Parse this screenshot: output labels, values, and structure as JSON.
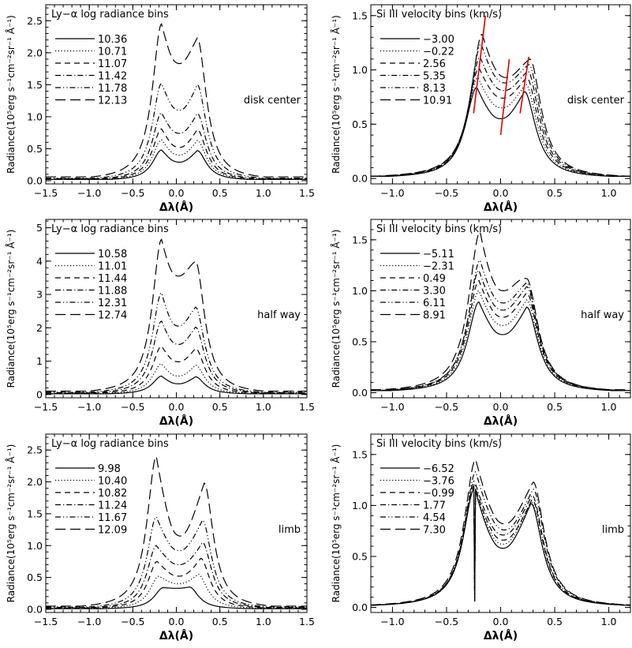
{
  "chart_data": [
    {
      "type": "line",
      "title": "Ly−α log radiance bins",
      "label": "disk center",
      "xlabel": "Δλ(Å)",
      "ylabel": "Radiance(10⁵erg s⁻¹cm⁻²sr⁻¹ Å⁻¹)",
      "xlim": [
        -1.5,
        1.5
      ],
      "ylim": [
        -0.05,
        2.75
      ],
      "xticks": [
        "-1.5",
        "-1.0",
        "-0.5",
        "0.0",
        "0.5",
        "1.0",
        "1.5"
      ],
      "yticks": [
        "0.0",
        "0.5",
        "1.0",
        "1.5",
        "2.0",
        "2.5"
      ],
      "grid": false,
      "legend_position": "top-left",
      "series": [
        {
          "name": "10.36",
          "line_style": "solid",
          "peaks": {
            "blue": [
              -0.17,
              0.48
            ],
            "red": [
              0.24,
              0.47
            ],
            "center": [
              0.0,
              0.29
            ],
            "wing": 0.02
          }
        },
        {
          "name": "10.71",
          "line_style": "dotted",
          "peaks": {
            "blue": [
              -0.17,
              0.64
            ],
            "red": [
              0.24,
              0.63
            ],
            "center": [
              0.0,
              0.4
            ],
            "wing": 0.02
          }
        },
        {
          "name": "11.07",
          "line_style": "dashed",
          "peaks": {
            "blue": [
              -0.17,
              0.81
            ],
            "red": [
              0.24,
              0.8
            ],
            "center": [
              0.0,
              0.52
            ],
            "wing": 0.03
          }
        },
        {
          "name": "11.42",
          "line_style": "dash-dot",
          "peaks": {
            "blue": [
              -0.17,
              1.06
            ],
            "red": [
              0.24,
              1.05
            ],
            "center": [
              0.0,
              0.74
            ],
            "wing": 0.03
          }
        },
        {
          "name": "11.78",
          "line_style": "dash-dot-dot",
          "peaks": {
            "blue": [
              -0.17,
              1.52
            ],
            "red": [
              0.24,
              1.5
            ],
            "center": [
              0.0,
              1.1
            ],
            "wing": 0.04
          }
        },
        {
          "name": "12.13",
          "line_style": "long-dash",
          "peaks": {
            "blue": [
              -0.17,
              2.45
            ],
            "red": [
              0.24,
              2.23
            ],
            "center": [
              0.0,
              1.83
            ],
            "wing": 0.06
          }
        }
      ]
    },
    {
      "type": "line",
      "title": "Si III velocity bins (km/s)",
      "label": "disk center",
      "xlabel": "Δλ(Å)",
      "ylabel": "Radiance(10⁵erg s⁻¹cm⁻²sr⁻¹ Å⁻¹)",
      "xlim": [
        -1.2,
        1.2
      ],
      "ylim": [
        -0.05,
        1.6
      ],
      "xticks": [
        "-1.0",
        "-0.5",
        "0.0",
        "0.5",
        "1.0"
      ],
      "yticks": [
        "0.0",
        "0.5",
        "1.0",
        "1.5"
      ],
      "grid": false,
      "legend_position": "top-left",
      "series": [
        {
          "name": "-3.00",
          "line_style": "solid",
          "peaks": {
            "blue": [
              -0.22,
              0.84
            ],
            "red": [
              0.22,
              0.8
            ],
            "center": [
              0.0,
              0.55
            ],
            "wing": 0.02
          }
        },
        {
          "name": "-0.22",
          "line_style": "dotted",
          "peaks": {
            "blue": [
              -0.21,
              0.93
            ],
            "red": [
              0.23,
              0.87
            ],
            "center": [
              0.01,
              0.65
            ],
            "wing": 0.02
          }
        },
        {
          "name": "2.56",
          "line_style": "dashed",
          "peaks": {
            "blue": [
              -0.2,
              1.02
            ],
            "red": [
              0.24,
              0.93
            ],
            "center": [
              0.02,
              0.74
            ],
            "wing": 0.02
          }
        },
        {
          "name": "5.35",
          "line_style": "dash-dot",
          "peaks": {
            "blue": [
              -0.19,
              1.12
            ],
            "red": [
              0.25,
              0.99
            ],
            "center": [
              0.03,
              0.81
            ],
            "wing": 0.02
          }
        },
        {
          "name": "8.13",
          "line_style": "dash-dot-dot",
          "peaks": {
            "blue": [
              -0.18,
              1.24
            ],
            "red": [
              0.26,
              1.05
            ],
            "center": [
              0.04,
              0.88
            ],
            "wing": 0.02
          }
        },
        {
          "name": "10.91",
          "line_style": "long-dash",
          "peaks": {
            "blue": [
              -0.17,
              1.33
            ],
            "red": [
              0.27,
              1.1
            ],
            "center": [
              0.05,
              0.93
            ],
            "wing": 0.02
          }
        }
      ],
      "annotations": {
        "red_lines": [
          {
            "from": [
              -0.25,
              0.6
            ],
            "to": [
              -0.14,
              1.5
            ]
          },
          {
            "from": [
              0.0,
              0.4
            ],
            "to": [
              0.08,
              1.1
            ]
          },
          {
            "from": [
              0.18,
              0.6
            ],
            "to": [
              0.26,
              1.12
            ]
          }
        ],
        "color": "#e00000"
      }
    },
    {
      "type": "line",
      "title": "Ly−α log radiance bins",
      "label": "half way",
      "xlabel": "Δλ(Å)",
      "ylabel": "Radiance(10⁵erg s⁻¹cm⁻²sr⁻¹ Å⁻¹)",
      "xlim": [
        -1.5,
        1.5
      ],
      "ylim": [
        -0.1,
        5.25
      ],
      "xticks": [
        "-1.5",
        "-1.0",
        "-0.5",
        "0.0",
        "0.5",
        "1.0",
        "1.5"
      ],
      "yticks": [
        "0",
        "1",
        "2",
        "3",
        "4",
        "5"
      ],
      "grid": false,
      "legend_position": "top-left",
      "series": [
        {
          "name": "10.58",
          "line_style": "solid",
          "peaks": {
            "blue": [
              -0.17,
              0.55
            ],
            "red": [
              0.22,
              0.53
            ],
            "center": [
              0.0,
              0.32
            ],
            "wing": 0.02
          }
        },
        {
          "name": "11.01",
          "line_style": "dotted",
          "peaks": {
            "blue": [
              -0.17,
              0.92
            ],
            "red": [
              0.22,
              0.88
            ],
            "center": [
              0.0,
              0.55
            ],
            "wing": 0.03
          }
        },
        {
          "name": "11.44",
          "line_style": "dashed",
          "peaks": {
            "blue": [
              -0.17,
              1.45
            ],
            "red": [
              0.22,
              1.38
            ],
            "center": [
              0.0,
              0.98
            ],
            "wing": 0.04
          }
        },
        {
          "name": "11.88",
          "line_style": "dash-dot",
          "peaks": {
            "blue": [
              -0.17,
              2.2
            ],
            "red": [
              0.22,
              2.02
            ],
            "center": [
              0.0,
              1.5
            ],
            "wing": 0.05
          }
        },
        {
          "name": "12.31",
          "line_style": "dash-dot-dot",
          "peaks": {
            "blue": [
              -0.17,
              3.05
            ],
            "red": [
              0.22,
              2.62
            ],
            "center": [
              0.0,
              2.05
            ],
            "wing": 0.07
          }
        },
        {
          "name": "12.74",
          "line_style": "long-dash",
          "peaks": {
            "blue": [
              -0.17,
              4.65
            ],
            "red": [
              0.22,
              4.0
            ],
            "center": [
              0.0,
              3.55
            ],
            "wing": 0.1
          }
        }
      ]
    },
    {
      "type": "line",
      "title": "Si III velocity bins (km/s)",
      "label": "half way",
      "xlabel": "Δλ(Å)",
      "ylabel": "Radiance(10⁵erg s⁻¹cm⁻²sr⁻¹ Å⁻¹)",
      "xlim": [
        -1.2,
        1.2
      ],
      "ylim": [
        -0.05,
        1.7
      ],
      "xticks": [
        "-1.0",
        "-0.5",
        "0.0",
        "0.5",
        "1.0"
      ],
      "yticks": [
        "0.0",
        "0.5",
        "1.0",
        "1.5"
      ],
      "grid": false,
      "legend_position": "top-left",
      "series": [
        {
          "name": "-5.11",
          "line_style": "solid",
          "peaks": {
            "blue": [
              -0.2,
              0.89
            ],
            "red": [
              0.24,
              0.84
            ],
            "center": [
              0.0,
              0.57
            ],
            "wing": 0.02
          }
        },
        {
          "name": "-2.31",
          "line_style": "dotted",
          "peaks": {
            "blue": [
              -0.2,
              1.0
            ],
            "red": [
              0.24,
              0.91
            ],
            "center": [
              0.01,
              0.66
            ],
            "wing": 0.02
          }
        },
        {
          "name": "0.49",
          "line_style": "dashed",
          "peaks": {
            "blue": [
              -0.2,
              1.1
            ],
            "red": [
              0.24,
              0.98
            ],
            "center": [
              0.01,
              0.74
            ],
            "wing": 0.02
          }
        },
        {
          "name": "3.30",
          "line_style": "dash-dot",
          "peaks": {
            "blue": [
              -0.2,
              1.2
            ],
            "red": [
              0.24,
              1.04
            ],
            "center": [
              0.02,
              0.81
            ],
            "wing": 0.02
          }
        },
        {
          "name": "6.11",
          "line_style": "dash-dot-dot",
          "peaks": {
            "blue": [
              -0.19,
              1.3
            ],
            "red": [
              0.24,
              1.08
            ],
            "center": [
              0.02,
              0.88
            ],
            "wing": 0.02
          }
        },
        {
          "name": "8.91",
          "line_style": "long-dash",
          "peaks": {
            "blue": [
              -0.19,
              1.58
            ],
            "red": [
              0.24,
              1.12
            ],
            "center": [
              0.03,
              1.0
            ],
            "wing": 0.03
          }
        }
      ]
    },
    {
      "type": "line",
      "title": "Ly−α log radiance bins",
      "label": "limb",
      "xlabel": "Δλ(Å)",
      "ylabel": "Radiance(10⁵erg s⁻¹cm⁻²sr⁻¹ Å⁻¹)",
      "xlim": [
        -1.5,
        1.5
      ],
      "ylim": [
        -0.05,
        2.75
      ],
      "xticks": [
        "-1.5",
        "-1.0",
        "-0.5",
        "0.0",
        "0.5",
        "1.0",
        "1.5"
      ],
      "yticks": [
        "0.0",
        "0.5",
        "1.0",
        "1.5",
        "2.0",
        "2.5"
      ],
      "grid": false,
      "legend_position": "top-left",
      "series": [
        {
          "name": "9.98",
          "line_style": "solid",
          "peaks": {
            "blue": [
              -0.15,
              0.34
            ],
            "red": [
              0.15,
              0.35
            ],
            "center": [
              0.0,
              0.33
            ],
            "wing": 0.01
          }
        },
        {
          "name": "10.40",
          "line_style": "dotted",
          "peaks": {
            "blue": [
              -0.2,
              0.52
            ],
            "red": [
              0.25,
              0.55
            ],
            "center": [
              0.0,
              0.4
            ],
            "wing": 0.02
          }
        },
        {
          "name": "10.82",
          "line_style": "dashed",
          "peaks": {
            "blue": [
              -0.22,
              0.75
            ],
            "red": [
              0.28,
              0.8
            ],
            "center": [
              0.0,
              0.52
            ],
            "wing": 0.02
          }
        },
        {
          "name": "11.24",
          "line_style": "dash-dot",
          "peaks": {
            "blue": [
              -0.23,
              1.0
            ],
            "red": [
              0.3,
              1.05
            ],
            "center": [
              0.0,
              0.7
            ],
            "wing": 0.03
          }
        },
        {
          "name": "11.67",
          "line_style": "dash-dot-dot",
          "peaks": {
            "blue": [
              -0.23,
              1.45
            ],
            "red": [
              0.3,
              1.4
            ],
            "center": [
              0.0,
              0.92
            ],
            "wing": 0.04
          }
        },
        {
          "name": "12.09",
          "line_style": "long-dash",
          "peaks": {
            "blue": [
              -0.23,
              2.4
            ],
            "red": [
              0.32,
              1.98
            ],
            "center": [
              0.0,
              1.15
            ],
            "wing": 0.05
          }
        }
      ]
    },
    {
      "type": "line",
      "title": "Si III velocity bins (km/s)",
      "label": "limb",
      "xlabel": "Δλ(Å)",
      "ylabel": "Radiance(10⁵erg s⁻¹cm⁻²sr⁻¹ Å⁻¹)",
      "xlim": [
        -1.2,
        1.2
      ],
      "ylim": [
        -0.05,
        1.7
      ],
      "xticks": [
        "-1.0",
        "-0.5",
        "0.0",
        "0.5",
        "1.0"
      ],
      "yticks": [
        "0.0",
        "0.5",
        "1.0",
        "1.5"
      ],
      "grid": false,
      "legend_position": "top-left",
      "series": [
        {
          "name": "-6.52",
          "line_style": "solid",
          "peaks": {
            "blue": [
              -0.24,
              1.17
            ],
            "red": [
              0.28,
              1.02
            ],
            "center": [
              0.02,
              0.58
            ],
            "wing": 0.01
          }
        },
        {
          "name": "-3.76",
          "line_style": "dotted",
          "peaks": {
            "blue": [
              -0.24,
              1.18
            ],
            "red": [
              0.28,
              1.04
            ],
            "center": [
              0.02,
              0.62
            ],
            "wing": 0.01
          }
        },
        {
          "name": "-0.99",
          "line_style": "dashed",
          "peaks": {
            "blue": [
              -0.24,
              1.2
            ],
            "red": [
              0.29,
              1.06
            ],
            "center": [
              0.02,
              0.66
            ],
            "wing": 0.01
          }
        },
        {
          "name": "1.77",
          "line_style": "dash-dot",
          "peaks": {
            "blue": [
              -0.24,
              1.24
            ],
            "red": [
              0.29,
              1.1
            ],
            "center": [
              0.02,
              0.71
            ],
            "wing": 0.01
          }
        },
        {
          "name": "4.54",
          "line_style": "dash-dot-dot",
          "peaks": {
            "blue": [
              -0.23,
              1.33
            ],
            "red": [
              0.3,
              1.16
            ],
            "center": [
              0.03,
              0.76
            ],
            "wing": 0.01
          }
        },
        {
          "name": "7.30",
          "line_style": "long-dash",
          "peaks": {
            "blue": [
              -0.23,
              1.45
            ],
            "red": [
              0.3,
              1.23
            ],
            "center": [
              0.03,
              0.82
            ],
            "wing": 0.01
          }
        }
      ]
    }
  ]
}
